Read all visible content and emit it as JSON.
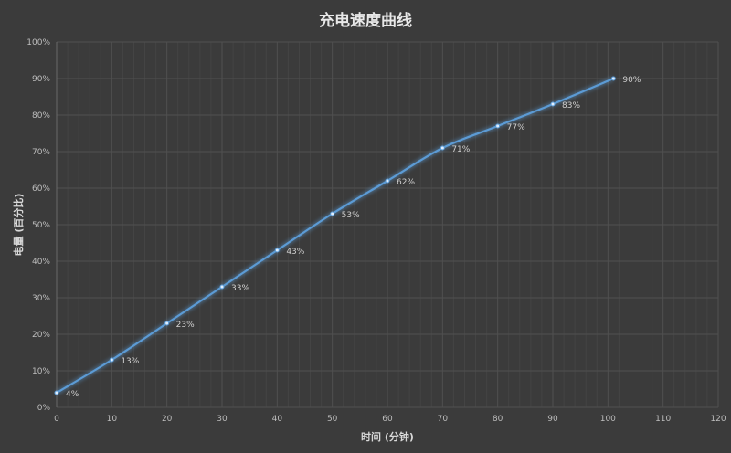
{
  "chart_data": {
    "type": "line",
    "title": "充电速度曲线",
    "xlabel": "时间 (分钟)",
    "ylabel": "电量 (百分比)",
    "x": [
      0,
      10,
      20,
      30,
      40,
      50,
      60,
      70,
      80,
      90,
      101
    ],
    "series": [
      {
        "values": [
          4,
          13,
          23,
          33,
          43,
          53,
          62,
          71,
          77,
          83,
          90
        ],
        "data_labels": [
          "4%",
          "13%",
          "23%",
          "33%",
          "43%",
          "53%",
          "62%",
          "71%",
          "77%",
          "83%",
          "90%"
        ]
      }
    ],
    "xlim": [
      0,
      120
    ],
    "ylim": [
      0,
      100
    ],
    "x_ticks": [
      "0",
      "10",
      "20",
      "30",
      "40",
      "50",
      "60",
      "70",
      "80",
      "90",
      "100",
      "110",
      "120"
    ],
    "y_ticks": [
      "0%",
      "10%",
      "20%",
      "30%",
      "40%",
      "50%",
      "60%",
      "70%",
      "80%",
      "90%",
      "100%"
    ],
    "grid": true,
    "smooth": true,
    "colors": {
      "background": "#3b3b3b",
      "line": "#5b9bd5",
      "grid": "#505050"
    }
  }
}
